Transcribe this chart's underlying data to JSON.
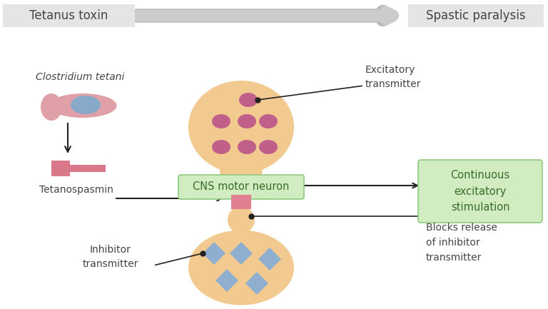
{
  "bg_color": "#ffffff",
  "header_bg": "#e5e5e5",
  "neuron_body_color": "#f2c98e",
  "excit_transmitter_color": "#c0608a",
  "inhib_transmitter_color": "#90aed0",
  "tetano_block_color": "#e08090",
  "arrow_color": "#222222",
  "green_box_bg": "#d0ecc0",
  "green_box_border": "#90c880",
  "text_color": "#444444",
  "green_text_color": "#3a6a2a",
  "title_left": "Tetanus toxin",
  "title_right": "Spastic paralysis",
  "label_clostridium": "Clostridium tetani",
  "label_tetanospasmin": "Tetanospasmin",
  "label_excitatory": "Excitatory\ntransmitter",
  "label_cns": "CNS motor neuron",
  "label_continuous": "Continuous\nexcitatory\nstimulation",
  "label_inhibitor": "Inhibitor\ntransmitter",
  "label_blocks": "Blocks release\nof inhibitor\ntransmitter",
  "fig_w": 7.68,
  "fig_h": 4.33,
  "dpi": 100
}
